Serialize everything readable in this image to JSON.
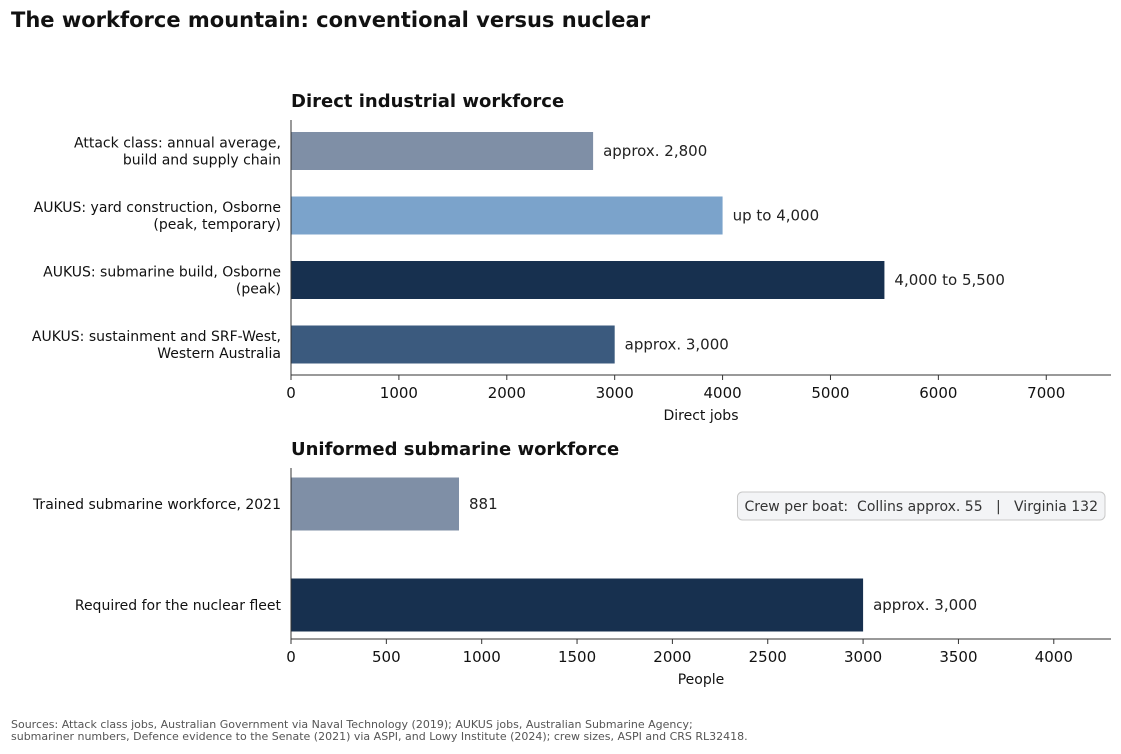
{
  "title": "The workforce mountain: conventional versus nuclear",
  "chart_data": [
    {
      "type": "bar",
      "orientation": "horizontal",
      "title": "Direct industrial workforce",
      "xlabel": "Direct jobs",
      "ylabel": "",
      "xlim": [
        0,
        7600
      ],
      "xticks": [
        0,
        1000,
        2000,
        3000,
        4000,
        5000,
        6000,
        7000
      ],
      "tick_labels": [
        "0",
        "1000",
        "2000",
        "3000",
        "4000",
        "5000",
        "6000",
        "7000"
      ],
      "grid": false,
      "categories": [
        [
          "Attack class: annual average,",
          "build and supply chain"
        ],
        [
          "AUKUS: yard construction, Osborne",
          "(peak, temporary)"
        ],
        [
          "AUKUS: submarine build, Osborne",
          "(peak)"
        ],
        [
          "AUKUS: sustainment and SRF-West,",
          "Western Australia"
        ]
      ],
      "values": [
        2800,
        4000,
        5500,
        3000
      ],
      "data_labels": [
        "approx. 2,800",
        "up to 4,000",
        "4,000 to 5,500",
        "approx. 3,000"
      ],
      "colors": [
        "#7f8fa6",
        "#7ba3cb",
        "#17304f",
        "#3b5a7e"
      ]
    },
    {
      "type": "bar",
      "orientation": "horizontal",
      "title": "Uniformed submarine workforce",
      "xlabel": "People",
      "ylabel": "",
      "xlim": [
        0,
        4300
      ],
      "xticks": [
        0,
        500,
        1000,
        1500,
        2000,
        2500,
        3000,
        3500,
        4000
      ],
      "tick_labels": [
        "0",
        "500",
        "1000",
        "1500",
        "2000",
        "2500",
        "3000",
        "3500",
        "4000"
      ],
      "grid": false,
      "categories": [
        [
          "Trained submarine workforce, 2021"
        ],
        [
          "Required for the nuclear fleet"
        ]
      ],
      "values": [
        881,
        3000
      ],
      "data_labels": [
        "881",
        "approx. 3,000"
      ],
      "colors": [
        "#7f8fa6",
        "#17304f"
      ],
      "annotation": "Crew per boat:  Collins approx. 55   |   Virginia 132"
    }
  ],
  "sources": [
    "Sources: Attack class jobs, Australian Government via Naval Technology (2019); AUKUS jobs, Australian Submarine Agency;",
    "submariner numbers, Defence evidence to the Senate (2021) via ASPI, and Lowy Institute (2024); crew sizes, ASPI and CRS RL32418."
  ]
}
